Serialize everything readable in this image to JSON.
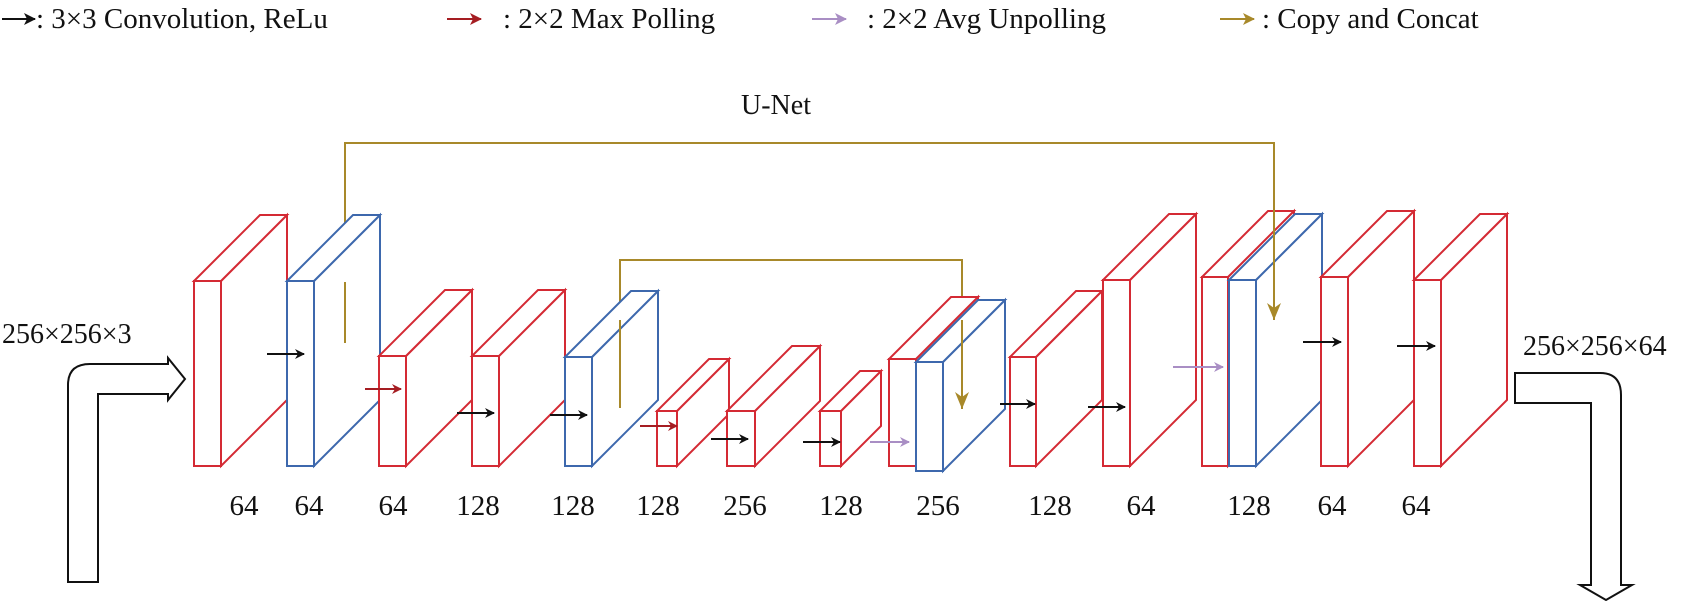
{
  "colors": {
    "red": "#d42a34",
    "blue": "#3d68ad",
    "black": "#111111",
    "dark_red": "#a51d22",
    "lavender": "#a98ec4",
    "gold": "#a8892a"
  },
  "legend": [
    {
      "arrow": "black",
      "label": ": 3×3 Convolution, ReLu"
    },
    {
      "arrow": "dark_red",
      "label": ": 2×2 Max Polling"
    },
    {
      "arrow": "lavender",
      "label": ": 2×2 Avg Unpolling"
    },
    {
      "arrow": "gold",
      "label": ": Copy and Concat"
    }
  ],
  "title": "U-Net",
  "input_label": "256×256×3",
  "output_label": "256×256×64",
  "channel_labels": [
    "64",
    "64",
    "64",
    "128",
    "128",
    "128",
    "256",
    "128",
    "256",
    "128",
    "64",
    "128",
    "64",
    "64"
  ],
  "blocks": [
    {
      "name": "block-1",
      "color": "red"
    },
    {
      "name": "block-2",
      "color": "blue"
    },
    {
      "name": "block-3",
      "color": "red"
    },
    {
      "name": "block-4",
      "color": "red"
    },
    {
      "name": "block-5",
      "color": "blue"
    },
    {
      "name": "block-6",
      "color": "red"
    },
    {
      "name": "block-7",
      "color": "red"
    },
    {
      "name": "block-8",
      "color": "red"
    },
    {
      "name": "block-9-red",
      "color": "red"
    },
    {
      "name": "block-9-blue",
      "color": "blue"
    },
    {
      "name": "block-10",
      "color": "red"
    },
    {
      "name": "block-11",
      "color": "red"
    },
    {
      "name": "block-12-red",
      "color": "red"
    },
    {
      "name": "block-12-blue",
      "color": "blue"
    },
    {
      "name": "block-13",
      "color": "red"
    },
    {
      "name": "block-14",
      "color": "red"
    }
  ],
  "arrows": [
    {
      "name": "conv-arrow-1",
      "type": "black"
    },
    {
      "name": "pool-arrow-1",
      "type": "dark_red"
    },
    {
      "name": "conv-arrow-2",
      "type": "black"
    },
    {
      "name": "conv-arrow-3",
      "type": "black"
    },
    {
      "name": "pool-arrow-2",
      "type": "dark_red"
    },
    {
      "name": "conv-arrow-4",
      "type": "black"
    },
    {
      "name": "conv-arrow-5",
      "type": "black"
    },
    {
      "name": "unpool-arrow-1",
      "type": "lavender"
    },
    {
      "name": "conv-arrow-6",
      "type": "black"
    },
    {
      "name": "conv-arrow-7",
      "type": "black"
    },
    {
      "name": "unpool-arrow-2",
      "type": "lavender"
    },
    {
      "name": "conv-arrow-8",
      "type": "black"
    },
    {
      "name": "conv-arrow-9",
      "type": "black"
    }
  ],
  "skips": [
    {
      "name": "skip-connection-outer",
      "type": "gold"
    },
    {
      "name": "skip-connection-inner",
      "type": "gold"
    }
  ]
}
